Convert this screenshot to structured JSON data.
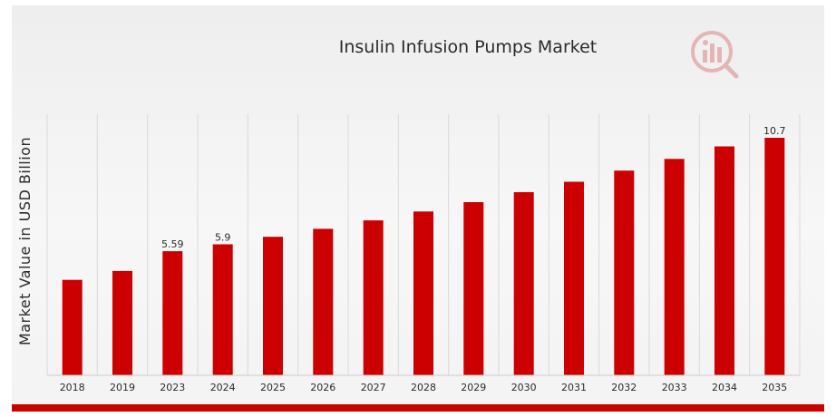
{
  "chart_data": {
    "type": "bar",
    "title": "Insulin Infusion Pumps Market",
    "xlabel": "",
    "ylabel": "Market Value in USD Billion",
    "categories": [
      "2018",
      "2019",
      "2023",
      "2024",
      "2025",
      "2026",
      "2027",
      "2028",
      "2029",
      "2030",
      "2031",
      "2032",
      "2033",
      "2034",
      "2035"
    ],
    "values": [
      4.3,
      4.7,
      5.59,
      5.9,
      6.24,
      6.6,
      6.98,
      7.38,
      7.8,
      8.25,
      8.72,
      9.22,
      9.75,
      10.31,
      10.7
    ],
    "data_labels": [
      "",
      "",
      "5.59",
      "5.9",
      "",
      "",
      "",
      "",
      "",
      "",
      "",
      "",
      "",
      "",
      "10.7"
    ],
    "ylim": [
      0,
      11.5
    ],
    "grid": "vertical",
    "bar_color": "#cc0000",
    "accent_color": "#cc0000"
  },
  "logo": {
    "icon": "mrfr-logo-icon"
  }
}
